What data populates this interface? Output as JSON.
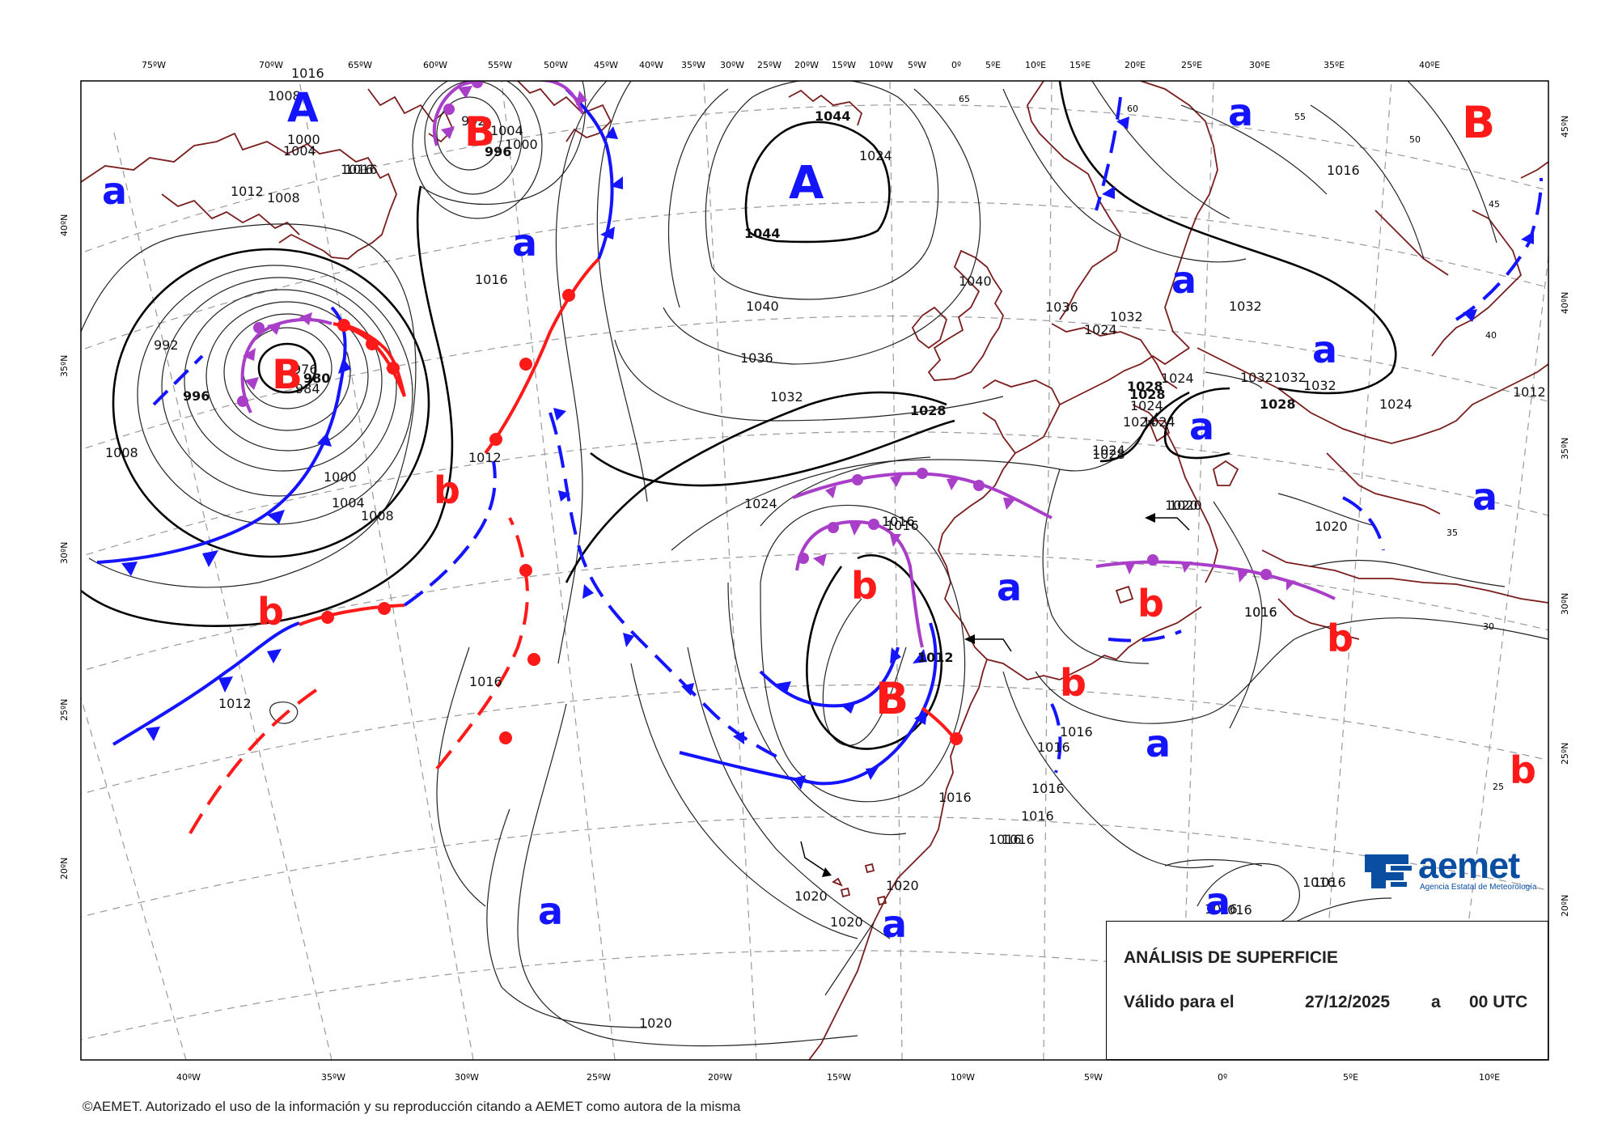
{
  "map": {
    "title": "ANÁLISIS DE SUPERFICIE",
    "valid_label": "Válido para el",
    "valid_date": "27/12/2025",
    "valid_sep": "a",
    "valid_time": "00 UTC",
    "copyright": "©AEMET. Autorizado el uso de la información y su reproducción citando a AEMET como autora de la misma",
    "logo": {
      "text": "aemet",
      "subtitle": "Agencia Estatal de Meteorología",
      "color": "#0a4ea1"
    },
    "colors": {
      "cold_front": "#1414ff",
      "warm_front": "#ff1a1a",
      "occluded_front": "#a93ec9",
      "low": "#ff1a1a",
      "high": "#1414ff",
      "coastline": "#7a1d1d"
    },
    "top_longitudes": [
      "75ºW",
      "70ºW",
      "65ºW",
      "60ºW",
      "55ºW",
      "50ºW",
      "45ºW",
      "40ºW",
      "35ºW",
      "30ºW",
      "25ºW",
      "20ºW",
      "15ºW",
      "10ºW",
      "5ºW",
      "0º",
      "5ºE",
      "10ºE",
      "15ºE",
      "20ºE",
      "25ºE",
      "30ºE",
      "35ºE",
      "40ºE"
    ],
    "bottom_longitudes": [
      "40ºW",
      "35ºW",
      "30ºW",
      "25ºW",
      "20ºW",
      "15ºW",
      "10ºW",
      "5ºW",
      "0º",
      "5ºE",
      "10ºE"
    ],
    "left_latitudes": [
      "40ºN",
      "35ºN",
      "30ºN",
      "25ºN",
      "20ºN"
    ],
    "right_latitudes": [
      "45ºN",
      "40ºN",
      "35ºN",
      "30ºN",
      "25ºN",
      "20ºN"
    ],
    "inner_grid_labels": [
      "65",
      "60",
      "55",
      "50",
      "45",
      "40",
      "35",
      "30",
      "25"
    ],
    "isobar_labels": [
      "1028",
      "1024",
      "1020",
      "1016",
      "1016",
      "1012",
      "1008",
      "1000",
      "1004",
      "996",
      "992",
      "1008",
      "1016",
      "1044",
      "1044",
      "1040",
      "1036",
      "1032",
      "1028",
      "1024",
      "1016",
      "1012",
      "1040",
      "1036",
      "1032",
      "1032",
      "1024",
      "1028",
      "1024",
      "1024",
      "1024",
      "1032",
      "1032",
      "1028",
      "1032",
      "1020",
      "1016",
      "1016",
      "1016",
      "1016",
      "1016",
      "1012",
      "1012",
      "1016",
      "1016",
      "1016",
      "1016",
      "1016",
      "1020",
      "1020",
      "1020",
      "1016",
      "1016",
      "1024",
      "1016",
      "1008",
      "1004",
      "1000",
      "996",
      "992",
      "984",
      "980",
      "976",
      "1000",
      "1004",
      "1008",
      "1012",
      "1016",
      "1016",
      "1016",
      "1020",
      "1016",
      "1016",
      "1024",
      "1028",
      "1024",
      "1020"
    ],
    "pressure_systems": [
      {
        "t": "A"
      },
      {
        "t": "A"
      },
      {
        "t": "B"
      },
      {
        "t": "B"
      },
      {
        "t": "B"
      },
      {
        "t": "B"
      },
      {
        "t": "a"
      },
      {
        "t": "a"
      },
      {
        "t": "a"
      },
      {
        "t": "a"
      },
      {
        "t": "a"
      },
      {
        "t": "a"
      },
      {
        "t": "a"
      },
      {
        "t": "a"
      },
      {
        "t": "a"
      },
      {
        "t": "a"
      },
      {
        "t": "a"
      },
      {
        "t": "a"
      },
      {
        "t": "b"
      },
      {
        "t": "b"
      },
      {
        "t": "b"
      },
      {
        "t": "b"
      },
      {
        "t": "b"
      },
      {
        "t": "b"
      },
      {
        "t": "b"
      }
    ]
  }
}
